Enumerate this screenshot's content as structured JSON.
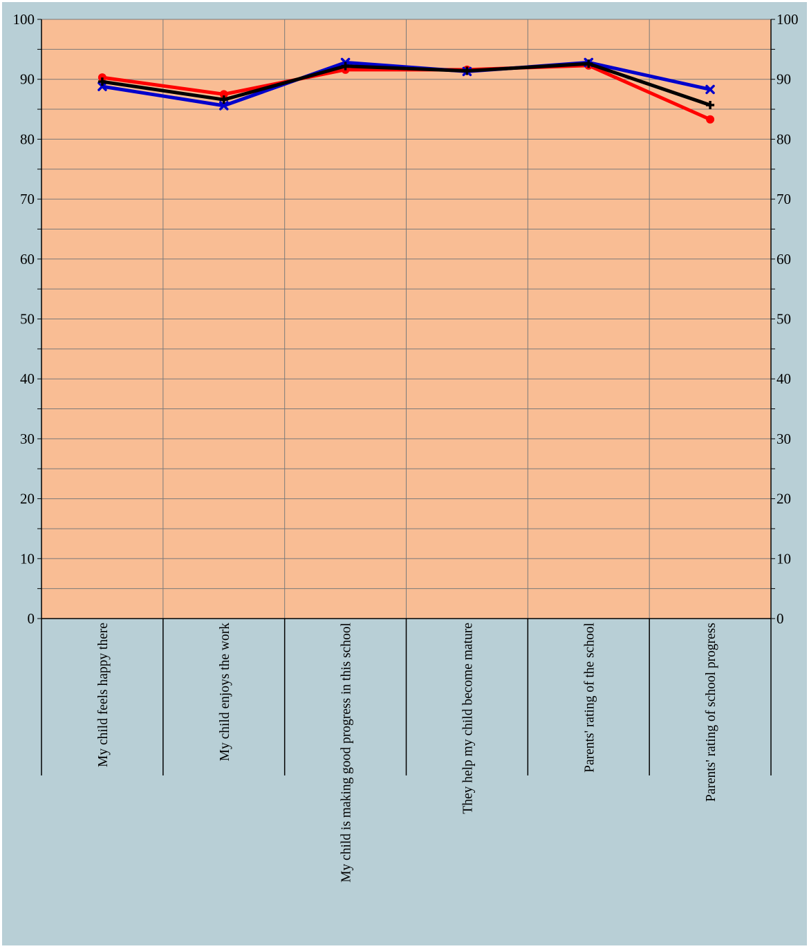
{
  "chart_data": {
    "type": "line",
    "categories": [
      "My child feels happy there",
      "My child enjoys the work",
      "My child is making good progress in this school",
      "They help my child become mature",
      "Parents' rating of the school",
      "Parents' rating of school progress"
    ],
    "series": [
      {
        "color": "#ff0000",
        "marker": "circle",
        "values": [
          90.3,
          87.5,
          91.6,
          91.6,
          92.3,
          83.3
        ]
      },
      {
        "color": "#0000cc",
        "marker": "x",
        "values": [
          88.8,
          85.6,
          92.8,
          91.3,
          92.8,
          88.3
        ]
      },
      {
        "color": "#000000",
        "marker": "plus",
        "values": [
          89.6,
          86.6,
          92.2,
          91.4,
          92.6,
          85.7
        ]
      }
    ],
    "ylim": [
      0,
      100
    ],
    "y_ticks": [
      "0",
      "10",
      "20",
      "30",
      "40",
      "50",
      "60",
      "70",
      "80",
      "90",
      "100"
    ],
    "y_minor_step": 5,
    "grid": true,
    "secondary_y_axis": true,
    "colors": {
      "page_background": "#b8cfd6",
      "plot_background": "#f9bd94",
      "gridline": "#7a7a7a"
    }
  }
}
